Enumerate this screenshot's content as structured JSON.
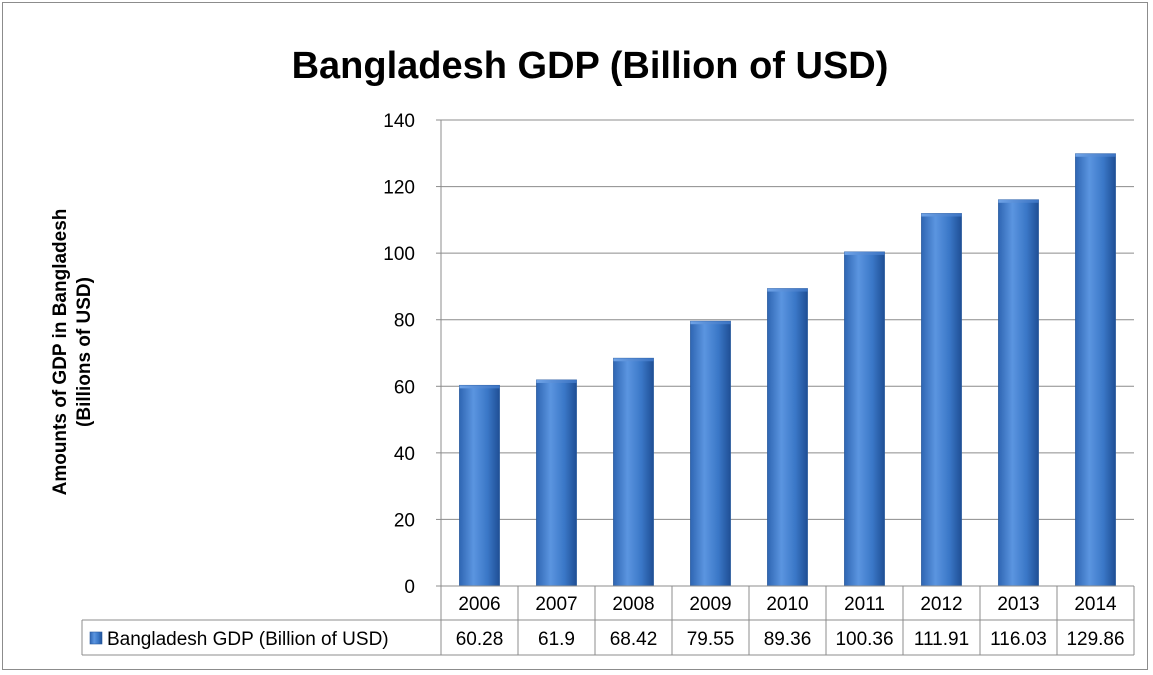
{
  "chart_data": {
    "type": "bar",
    "title": "Bangladesh GDP (Billion of USD)",
    "ylabel_lines": [
      "Amounts of GDP in Bangladesh",
      "(Billions of USD)"
    ],
    "xlabel": "",
    "categories": [
      "2006",
      "2007",
      "2008",
      "2009",
      "2010",
      "2011",
      "2012",
      "2013",
      "2014"
    ],
    "series": [
      {
        "name": "Bangladesh GDP (Billion of USD)",
        "values": [
          60.28,
          61.9,
          68.42,
          79.55,
          89.36,
          100.36,
          111.91,
          116.03,
          129.86
        ],
        "value_labels": [
          "60.28",
          "61.9",
          "68.42",
          "79.55",
          "89.36",
          "100.36",
          "111.91",
          "116.03",
          "129.86"
        ],
        "color": "#3f7fcf"
      }
    ],
    "ylim": [
      0,
      140
    ],
    "yticks": [
      0,
      20,
      40,
      60,
      80,
      100,
      120,
      140
    ],
    "grid": true,
    "legend": "data-table-row",
    "data_table": true
  }
}
